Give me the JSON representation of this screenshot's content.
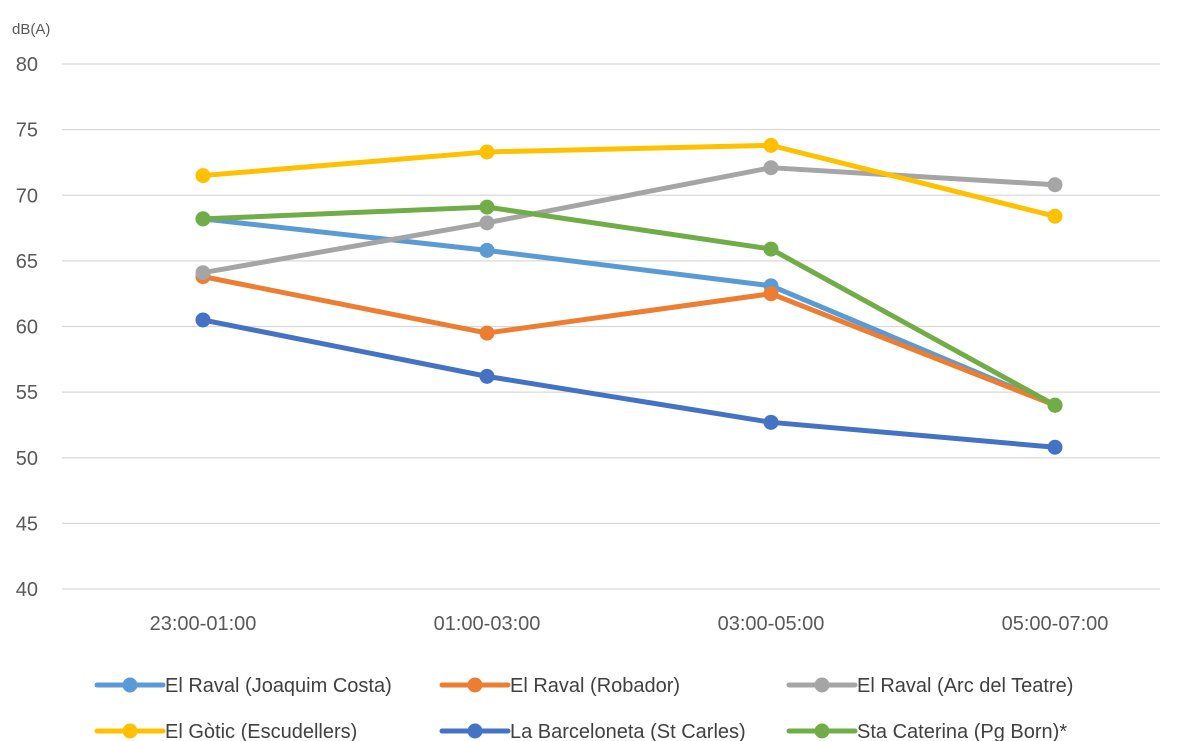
{
  "chart_data": {
    "type": "line",
    "title": "",
    "xlabel": "",
    "ylabel": "dB(A)",
    "ylim": [
      40,
      80
    ],
    "yticks": [
      40,
      45,
      50,
      55,
      60,
      65,
      70,
      75,
      80
    ],
    "grid": true,
    "legend_position": "bottom",
    "categories": [
      "23:00-01:00",
      "01:00-03:00",
      "03:00-05:00",
      "05:00-07:00"
    ],
    "series": [
      {
        "name": "El Raval (Joaquim Costa)",
        "color": "#5b9bd5",
        "values": [
          68.2,
          65.8,
          63.1,
          54.0
        ]
      },
      {
        "name": "El Raval (Robador)",
        "color": "#ed7d31",
        "values": [
          63.8,
          59.5,
          62.5,
          54.0
        ]
      },
      {
        "name": "El Raval (Arc del Teatre)",
        "color": "#a5a5a5",
        "values": [
          64.1,
          67.9,
          72.1,
          70.8
        ]
      },
      {
        "name": "El Gòtic (Escudellers)",
        "color": "#ffc000",
        "values": [
          71.5,
          73.3,
          73.8,
          68.4
        ]
      },
      {
        "name": "La Barceloneta (St Carles)",
        "color": "#4472c4",
        "values": [
          60.5,
          56.2,
          52.7,
          50.8
        ]
      },
      {
        "name": "Sta Caterina (Pg Born)*",
        "color": "#70ad47",
        "values": [
          68.2,
          69.1,
          65.9,
          54.0
        ]
      }
    ]
  }
}
